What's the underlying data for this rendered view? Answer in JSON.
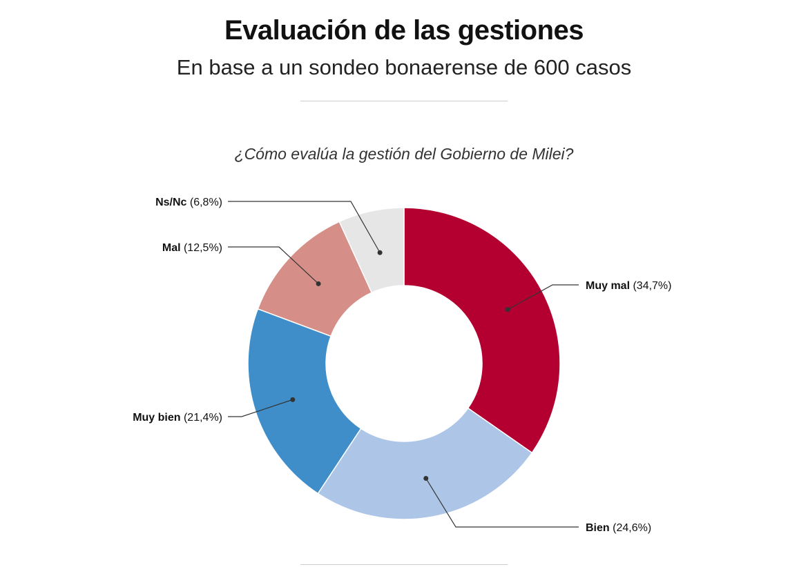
{
  "header": {
    "title": "Evaluación de las gestiones",
    "subtitle": "En base a un sondeo bonaerense de 600 casos"
  },
  "chart_data": {
    "type": "pie",
    "variant": "donut",
    "title": "¿Cómo evalúa la gestión del Gobierno de Milei?",
    "unit": "%",
    "slices": [
      {
        "label": "Muy mal",
        "value": 34.7,
        "display": "(34,7%)",
        "color": "#b40030"
      },
      {
        "label": "Bien",
        "value": 24.6,
        "display": "(24,6%)",
        "color": "#adc5e7"
      },
      {
        "label": "Muy bien",
        "value": 21.4,
        "display": "(21,4%)",
        "color": "#3f8ec9"
      },
      {
        "label": "Mal",
        "value": 12.5,
        "display": "(12,5%)",
        "color": "#d58f88"
      },
      {
        "label": "Ns/Nc",
        "value": 6.8,
        "display": "(6,8%)",
        "color": "#e6e6e6"
      }
    ]
  }
}
